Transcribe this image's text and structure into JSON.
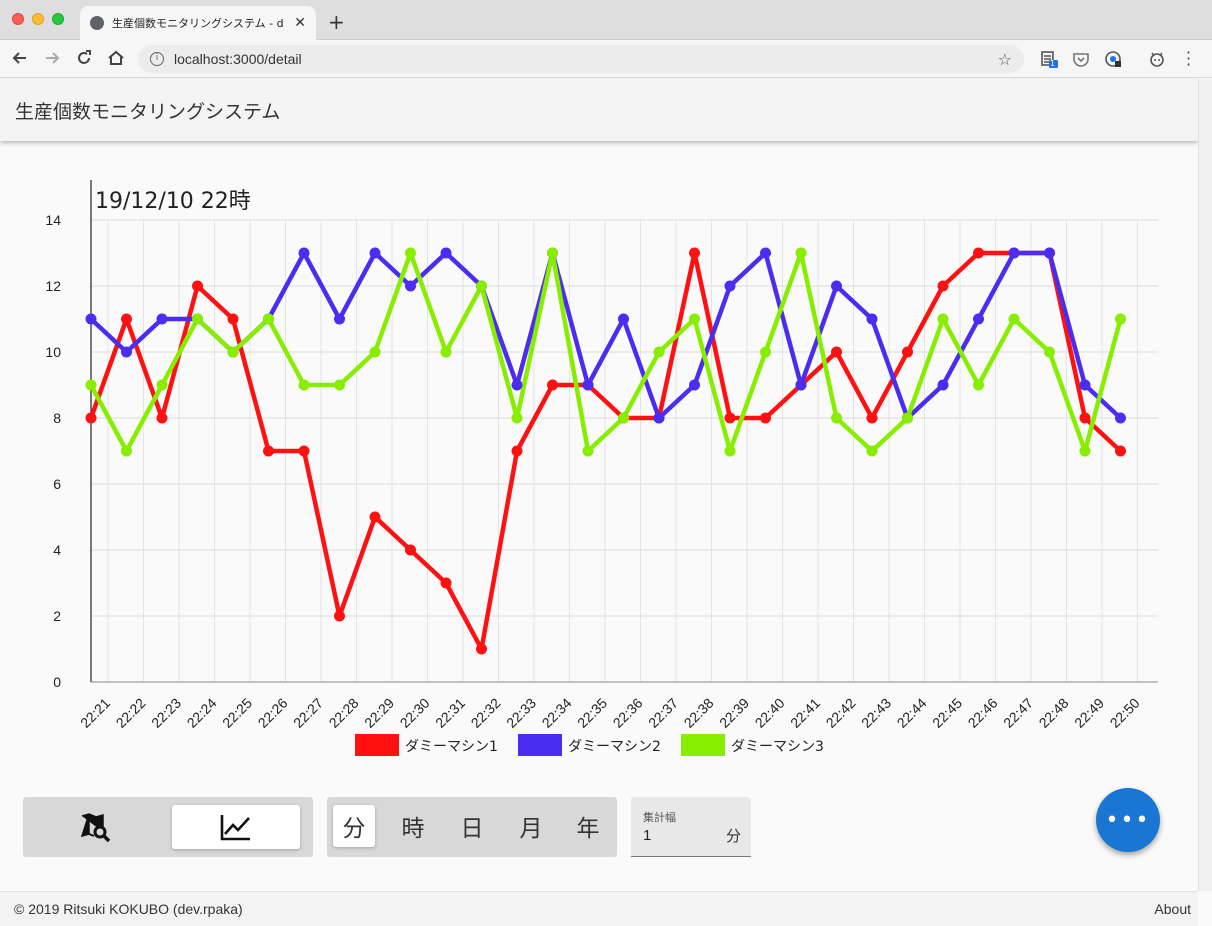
{
  "browser": {
    "tab_title": "生産個数モニタリングシステム - d",
    "tab_close": "✕",
    "new_tab": "+",
    "url": "localhost:3000/detail",
    "extension_badge": "1"
  },
  "app": {
    "title": "生産個数モニタリングシステム"
  },
  "chart_data": {
    "type": "line",
    "title": "19/12/10 22時",
    "ylim": [
      0,
      14
    ],
    "yticks": [
      0,
      2,
      4,
      6,
      8,
      10,
      12,
      14
    ],
    "grid": true,
    "legend_position": "bottom",
    "x": [
      "22:21",
      "22:22",
      "22:23",
      "22:24",
      "22:25",
      "22:26",
      "22:27",
      "22:28",
      "22:29",
      "22:30",
      "22:31",
      "22:32",
      "22:33",
      "22:34",
      "22:35",
      "22:36",
      "22:37",
      "22:38",
      "22:39",
      "22:40",
      "22:41",
      "22:42",
      "22:43",
      "22:44",
      "22:45",
      "22:46",
      "22:47",
      "22:48",
      "22:49",
      "22:50"
    ],
    "series": [
      {
        "name": "ダミーマシン1",
        "color": "#ff1111",
        "values": [
          8,
          11,
          8,
          12,
          11,
          7,
          7,
          2,
          5,
          4,
          3,
          1,
          7,
          9,
          9,
          8,
          8,
          13,
          8,
          8,
          9,
          10,
          8,
          10,
          12,
          13,
          13,
          13,
          8,
          7
        ]
      },
      {
        "name": "ダミーマシン2",
        "color": "#4a2df0",
        "values": [
          11,
          10,
          11,
          11,
          10,
          11,
          13,
          11,
          13,
          12,
          13,
          12,
          9,
          13,
          9,
          11,
          8,
          9,
          12,
          13,
          9,
          12,
          11,
          8,
          9,
          11,
          13,
          13,
          9,
          8
        ]
      },
      {
        "name": "ダミーマシン3",
        "color": "#88ee00",
        "values": [
          9,
          7,
          9,
          11,
          10,
          11,
          9,
          9,
          10,
          13,
          10,
          12,
          8,
          13,
          7,
          8,
          10,
          11,
          7,
          10,
          13,
          8,
          7,
          8,
          11,
          9,
          11,
          10,
          7,
          11
        ]
      }
    ]
  },
  "controls": {
    "units": [
      "分",
      "時",
      "日",
      "月",
      "年"
    ],
    "active_unit": "分",
    "aggregation": {
      "label": "集計幅",
      "value": "1",
      "unit": "分"
    },
    "fab_label": "•••"
  },
  "footer": {
    "copyright": "© 2019 Ritsuki KOKUBO (dev.rpaka)",
    "about": "About"
  }
}
